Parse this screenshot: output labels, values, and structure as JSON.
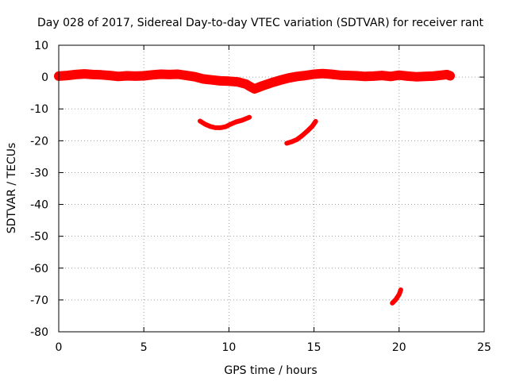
{
  "chart_data": {
    "type": "scatter",
    "title": "Day 028 of 2017, Sidereal Day-to-day VTEC variation (SDTVAR) for receiver rant",
    "xlabel": "GPS time / hours",
    "ylabel": "SDTVAR / TECUs",
    "xlim": [
      0,
      25
    ],
    "ylim": [
      -80,
      10
    ],
    "x_ticks": [
      0,
      5,
      10,
      15,
      20,
      25
    ],
    "y_ticks": [
      10,
      0,
      -10,
      -20,
      -30,
      -40,
      -50,
      -60,
      -70,
      -80
    ],
    "grid": true,
    "marker_color": "#ff0000",
    "series": [
      {
        "name": "main band",
        "x": [
          0,
          0.5,
          1,
          1.5,
          2,
          2.5,
          3,
          3.5,
          4,
          4.5,
          5,
          5.5,
          6,
          6.5,
          7,
          7.5,
          8,
          8.5,
          9,
          9.5,
          10,
          10.5,
          11,
          11.25,
          11.5,
          12,
          12.5,
          13,
          13.5,
          14,
          14.5,
          15,
          15.5,
          16,
          16.5,
          17,
          17.5,
          18,
          18.5,
          19,
          19.5,
          20,
          20.5,
          21,
          21.5,
          22,
          22.5,
          22.8,
          23
        ],
        "y": [
          0.3,
          0.5,
          0.8,
          1.0,
          0.8,
          0.7,
          0.5,
          0.2,
          0.4,
          0.3,
          0.4,
          0.7,
          0.9,
          0.8,
          0.9,
          0.5,
          0.1,
          -0.6,
          -0.9,
          -1.2,
          -1.3,
          -1.5,
          -2.2,
          -3.0,
          -3.7,
          -2.7,
          -1.8,
          -1.0,
          -0.3,
          0.2,
          0.5,
          0.9,
          1.1,
          0.9,
          0.6,
          0.5,
          0.4,
          0.2,
          0.3,
          0.5,
          0.2,
          0.6,
          0.3,
          0.1,
          0.2,
          0.3,
          0.6,
          0.8,
          0.4
        ]
      },
      {
        "name": "arc near 8-11 h",
        "x": [
          8.3,
          8.6,
          8.9,
          9.2,
          9.5,
          9.8,
          10.1,
          10.4,
          10.8,
          11.2
        ],
        "y": [
          -13.8,
          -14.8,
          -15.5,
          -15.9,
          -15.9,
          -15.6,
          -14.8,
          -14.1,
          -13.5,
          -12.6
        ]
      },
      {
        "name": "arc near 13-15 h",
        "x": [
          13.4,
          13.7,
          14.0,
          14.3,
          14.6,
          14.9,
          15.1
        ],
        "y": [
          -20.8,
          -20.3,
          -19.6,
          -18.4,
          -17.0,
          -15.4,
          -13.9
        ]
      },
      {
        "name": "segment near 20 h",
        "x": [
          19.6,
          19.8,
          20.0,
          20.1
        ],
        "y": [
          -71.0,
          -69.9,
          -68.3,
          -66.8
        ]
      }
    ]
  }
}
